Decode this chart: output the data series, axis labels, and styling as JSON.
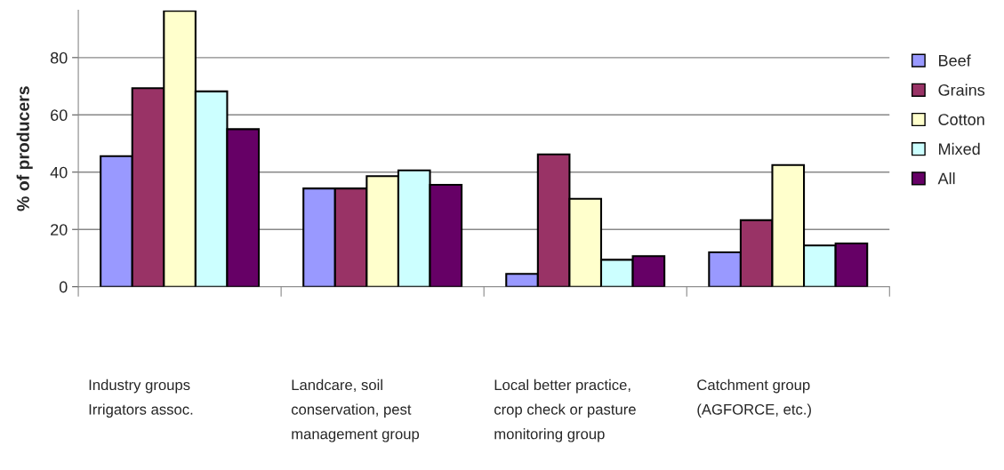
{
  "chart_data": {
    "type": "bar",
    "ylabel": "% of producers",
    "categories": [
      "Industry groups Irrigators assoc.",
      "Landcare, soil conservation, pest management group",
      "Local better practice, crop check or pasture monitoring group",
      "Catchment group (AGFORCE, etc.)"
    ],
    "series": [
      {
        "name": "Beef",
        "color": "#9999ff",
        "values": [
          45.6,
          34.3,
          4.5,
          12
        ]
      },
      {
        "name": "Grains",
        "color": "#993366",
        "values": [
          69.3,
          34.3,
          46.2,
          23.2
        ]
      },
      {
        "name": "Cotton",
        "color": "#ffffcc",
        "values": [
          96.3,
          38.6,
          30.7,
          42.5
        ]
      },
      {
        "name": "Mixed",
        "color": "#ccffff",
        "values": [
          68.2,
          40.6,
          9.4,
          14.4
        ]
      },
      {
        "name": "All",
        "color": "#660066",
        "values": [
          55,
          35.6,
          10.7,
          15.1
        ]
      }
    ],
    "ylim": [
      0,
      96.5
    ],
    "yticks": [
      0,
      20,
      40,
      60,
      80
    ],
    "grid": "y",
    "legend": "right"
  }
}
